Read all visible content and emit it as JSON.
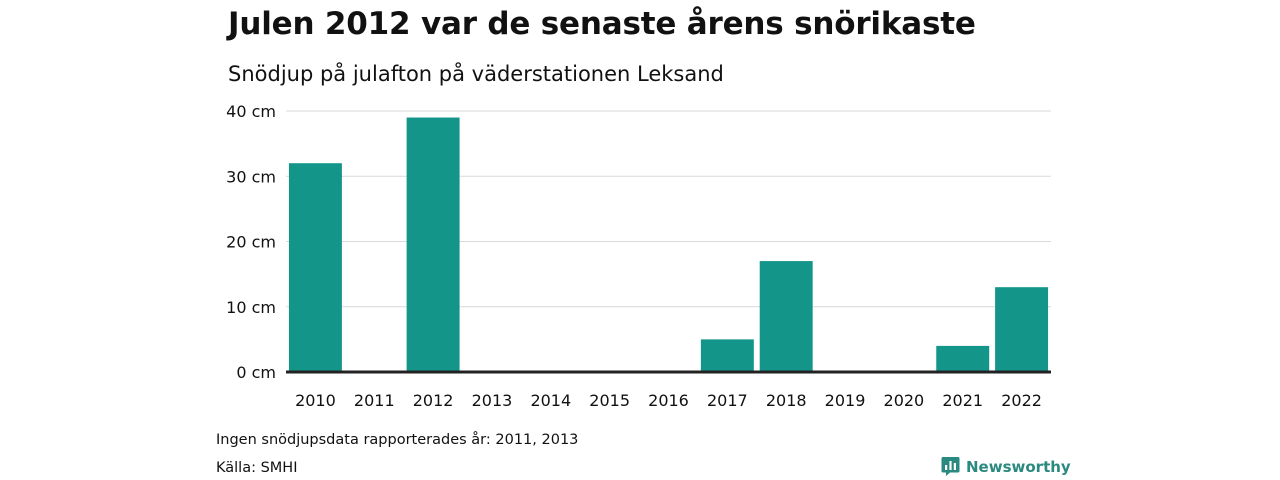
{
  "header": {
    "title": "Julen 2012 var de senaste årens snörikaste",
    "subtitle": "Snödjup på julafton på väderstationen Leksand"
  },
  "footer": {
    "note": "Ingen snödjupsdata rapporterades år: 2011, 2013",
    "source": "Källa: SMHI",
    "brand": "Newsworthy"
  },
  "colors": {
    "bar": "#14958a",
    "grid": "#d9d9d9",
    "baseline": "#222222",
    "brand": "#2a8a80"
  },
  "icons": {
    "brand_logo": "newsworthy-chart-bubble-icon"
  },
  "chart_data": {
    "type": "bar",
    "title": "Julen 2012 var de senaste årens snörikaste",
    "subtitle": "Snödjup på julafton på väderstationen Leksand",
    "categories": [
      "2010",
      "2011",
      "2012",
      "2013",
      "2014",
      "2015",
      "2016",
      "2017",
      "2018",
      "2019",
      "2020",
      "2021",
      "2022"
    ],
    "values": [
      32,
      null,
      39,
      null,
      0,
      0,
      0,
      5,
      17,
      0,
      0,
      4,
      13
    ],
    "ylim": [
      0,
      40
    ],
    "yticks": [
      0,
      10,
      20,
      30,
      40
    ],
    "ytick_labels": [
      "0 cm",
      "10 cm",
      "20 cm",
      "30 cm",
      "40 cm"
    ],
    "grid": true,
    "legend": "none"
  }
}
